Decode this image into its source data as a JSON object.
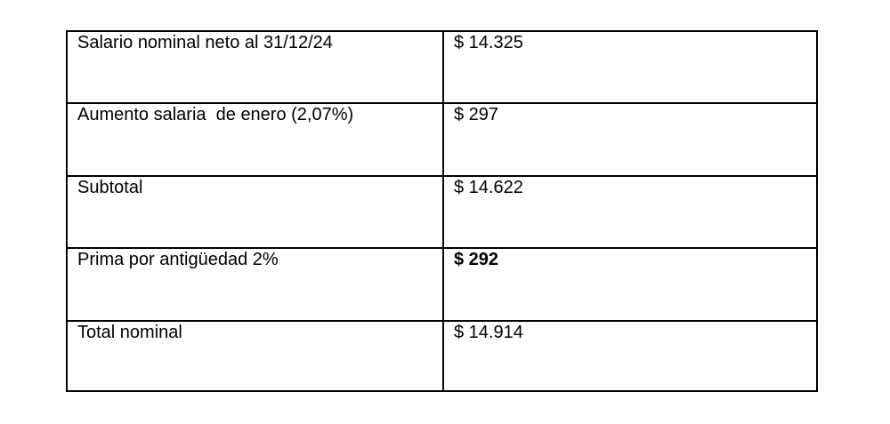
{
  "table": {
    "rows": [
      {
        "label": "Salario nominal neto al 31/12/24",
        "value": "$ 14.325",
        "bold": false
      },
      {
        "label": "Aumento salaria  de enero (2,07%)",
        "value": "$ 297",
        "bold": false
      },
      {
        "label": "Subtotal",
        "value": "$ 14.622",
        "bold": false
      },
      {
        "label": "Prima por antigüedad 2%",
        "value": "$ 292",
        "bold": true
      },
      {
        "label": "Total nominal",
        "value": "$ 14.914",
        "bold": false
      }
    ]
  }
}
